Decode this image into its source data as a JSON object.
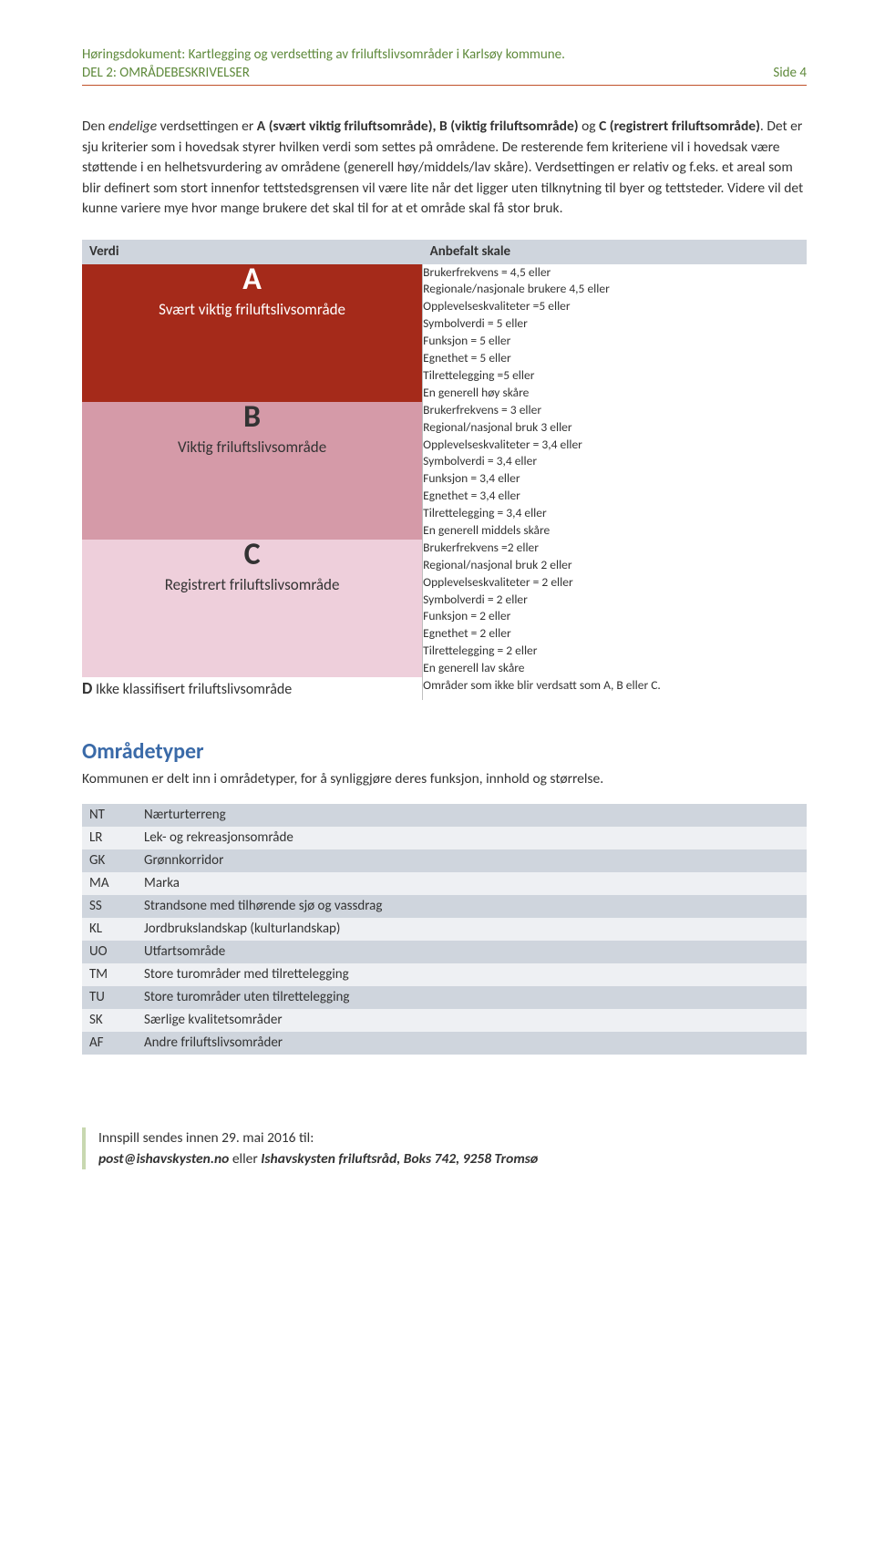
{
  "header": {
    "line1": "Høringsdokument: Kartlegging og verdsetting av friluftslivsområder i Karlsøy kommune.",
    "line2_left": "DEL 2: OMRÅDEBESKRIVELSER",
    "line2_right": "Side 4"
  },
  "paragraphs": {
    "p1_a": "Den ",
    "p1_b": "endelige",
    "p1_c": " verdsettingen er ",
    "p1_d": "A (svært viktig friluftsområde), B (viktig friluftsområde)",
    "p1_e": " og ",
    "p1_f": "C (registrert friluftsområde)",
    "p1_g": ". Det er sju kriterier som i hovedsak styrer hvilken verdi som settes på områdene. De resterende fem kriteriene vil i hovedsak være støttende i en helhetsvurdering av områdene (generell høy/middels/lav skåre). Verdsettingen er relativ og f.eks. et areal som blir definert som stort innenfor tettstedsgrensen vil være lite når det ligger uten tilknytning til byer og tettsteder. Videre vil det kunne variere mye hvor mange brukere det skal til for at et område skal få stor bruk."
  },
  "verdi_table": {
    "head_left": "Verdi",
    "head_right": "Anbefalt skale",
    "rows": [
      {
        "letter": "A",
        "label": "Svært viktig friluftslivsområde",
        "bg": "cat-a",
        "lines": [
          "Brukerfrekvens = 4,5 eller",
          "Regionale/nasjonale brukere 4,5 eller",
          "Opplevelseskvaliteter =5 eller",
          "Symbolverdi = 5 eller",
          "Funksjon = 5 eller",
          "Egnethet = 5 eller",
          "Tilrettelegging =5 eller",
          "En generell høy skåre"
        ]
      },
      {
        "letter": "B",
        "label": "Viktig friluftslivsområde",
        "bg": "cat-b",
        "lines": [
          "Brukerfrekvens = 3 eller",
          "Regional/nasjonal bruk 3 eller",
          "Opplevelseskvaliteter = 3,4 eller",
          "Symbolverdi = 3,4 eller",
          "Funksjon = 3,4 eller",
          "Egnethet = 3,4 eller",
          "Tilrettelegging = 3,4 eller",
          "En generell middels skåre"
        ]
      },
      {
        "letter": "C",
        "label": "Registrert friluftslivsområde",
        "bg": "cat-c",
        "lines": [
          "Brukerfrekvens =2 eller",
          "Regional/nasjonal bruk 2 eller",
          "Opplevelseskvaliteter = 2 eller",
          "Symbolverdi = 2 eller",
          "Funksjon = 2 eller",
          "Egnethet = 2 eller",
          "Tilrettelegging = 2 eller",
          "En generell lav skåre"
        ]
      }
    ],
    "d_letter": "D",
    "d_label": " Ikke klassifisert friluftslivsområde",
    "d_right": "Områder som ikke blir verdsatt som A, B eller C."
  },
  "omradetyper": {
    "heading": "Områdetyper",
    "sub": "Kommunen er delt inn i områdetyper, for å synliggjøre deres funksjon, innhold og størrelse.",
    "rows": [
      {
        "code": "NT",
        "name": "Nærturterreng"
      },
      {
        "code": "LR",
        "name": "Lek- og rekreasjonsområde"
      },
      {
        "code": "GK",
        "name": "Grønnkorridor"
      },
      {
        "code": "MA",
        "name": "Marka"
      },
      {
        "code": "SS",
        "name": "Strandsone med tilhørende sjø og vassdrag"
      },
      {
        "code": "KL",
        "name": "Jordbrukslandskap (kulturlandskap)"
      },
      {
        "code": "UO",
        "name": "Utfartsområde"
      },
      {
        "code": "TM",
        "name": "Store turområder med tilrettelegging"
      },
      {
        "code": "TU",
        "name": "Store turområder uten tilrettelegging"
      },
      {
        "code": "SK",
        "name": "Særlige kvalitetsområder"
      },
      {
        "code": "AF",
        "name": "Andre friluftslivsområder"
      }
    ]
  },
  "footer": {
    "l1": "Innspill sendes innen 29. mai 2016 til:",
    "l2_a": "post@ishavskysten.no",
    "l2_b": " eller ",
    "l2_c": "Ishavskysten friluftsråd, Boks 742, 9258 Tromsø"
  },
  "colors": {
    "header_text": "#5f8a3c",
    "header_rule": "#c05028",
    "thead_bg": "#cfd5dd",
    "cat_a_bg": "#a52a1a",
    "cat_b_bg": "#d59aa8",
    "cat_c_bg": "#eecfdb",
    "section_h": "#3a6aa8",
    "type_odd": "#cfd5dd",
    "type_even": "#eef0f3",
    "footer_bar": "#c8d8b0"
  }
}
